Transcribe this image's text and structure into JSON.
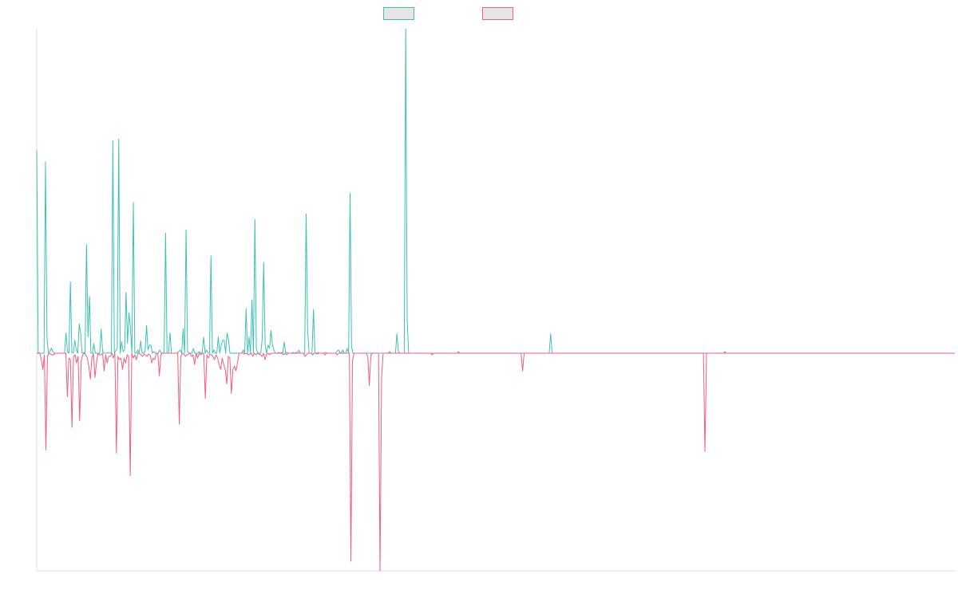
{
  "chart_data": {
    "type": "line",
    "title": "",
    "xlabel": "",
    "ylabel": "",
    "grid": false,
    "legend": "top-center",
    "colors": {
      "series_up": "#3cc1b4",
      "series_down": "#f25d80",
      "axis": "#dddddd"
    },
    "ylim": [
      -270,
      400
    ],
    "series": [
      {
        "values": [
          250,
          1,
          0,
          0,
          0,
          0,
          236,
          20,
          0,
          2,
          6,
          2,
          0,
          0,
          0,
          0,
          0,
          0,
          0,
          0,
          25,
          2,
          0,
          88,
          1,
          0,
          16,
          4,
          0,
          36,
          24,
          0,
          1,
          0,
          134,
          20,
          70,
          0,
          0,
          12,
          0,
          0,
          0,
          0,
          30,
          2,
          0,
          0,
          0,
          1,
          0,
          0,
          262,
          0,
          3,
          6,
          264,
          0,
          14,
          2,
          4,
          75,
          12,
          50,
          30,
          0,
          186,
          0,
          0,
          4,
          0,
          15,
          0,
          0,
          3,
          34,
          4,
          10,
          10,
          0,
          2,
          0,
          0,
          0,
          4,
          0,
          0,
          0,
          148,
          0,
          0,
          25,
          0,
          0,
          0,
          0,
          0,
          2,
          4,
          0,
          30,
          0,
          152,
          2,
          0,
          0,
          0,
          6,
          0,
          0,
          0,
          2,
          0,
          0,
          20,
          0,
          4,
          0,
          0,
          120,
          0,
          4,
          0,
          0,
          20,
          0,
          10,
          16,
          16,
          0,
          25,
          16,
          0,
          0,
          0,
          0,
          0,
          0,
          0,
          0,
          0,
          4,
          0,
          55,
          0,
          20,
          0,
          66,
          0,
          165,
          5,
          0,
          0,
          0,
          18,
          112,
          10,
          0,
          10,
          6,
          28,
          10,
          4,
          0,
          0,
          1,
          0,
          1,
          0,
          14,
          0,
          1,
          0,
          0,
          0,
          1,
          0,
          1,
          0,
          4,
          0,
          0,
          0,
          0,
          172,
          30,
          0,
          0,
          0,
          54,
          0,
          0,
          1,
          0,
          0,
          0,
          0,
          1,
          0,
          0,
          0,
          0,
          0,
          0,
          0,
          2,
          4,
          1,
          0,
          4,
          0,
          0,
          6,
          0,
          197,
          8,
          0,
          0,
          0,
          0,
          0,
          0,
          0,
          0,
          0,
          0,
          0,
          0,
          0,
          0,
          0,
          0,
          0,
          0,
          0,
          0,
          0,
          0,
          0,
          0,
          0,
          2,
          0,
          0,
          0,
          0,
          24,
          2,
          0,
          0,
          0,
          0,
          400,
          40,
          0,
          0,
          0,
          0,
          0,
          0,
          0,
          0,
          0,
          0,
          0,
          0,
          0,
          0,
          0,
          0,
          0,
          0,
          0,
          0,
          0,
          0,
          0,
          0,
          0,
          0,
          0,
          0,
          0,
          0,
          0,
          0,
          0,
          0,
          2,
          0,
          0,
          0,
          0,
          0,
          0,
          0,
          0,
          0,
          0,
          0,
          0,
          0,
          0,
          0,
          0,
          0,
          0,
          0,
          0,
          0,
          0,
          0,
          0,
          0,
          0,
          0,
          0,
          0,
          0,
          0,
          0,
          0,
          0,
          0,
          0,
          0,
          0,
          0,
          0,
          0,
          0,
          0,
          0,
          0,
          0,
          0,
          0,
          0,
          0,
          0,
          0,
          0,
          0,
          0,
          0,
          0,
          0,
          0,
          0,
          0,
          0,
          24,
          0,
          0,
          0,
          0,
          0,
          0,
          0,
          0,
          0,
          0,
          0,
          0,
          0,
          0,
          0,
          0,
          0,
          0,
          0,
          0,
          0,
          0,
          0,
          0,
          0,
          0,
          0,
          0,
          0,
          0,
          0,
          0,
          0,
          0,
          0,
          0,
          0,
          0,
          0,
          0,
          0,
          0,
          0,
          0,
          0,
          0,
          0,
          0,
          0,
          0,
          0,
          0,
          0,
          0,
          0,
          0,
          0,
          0,
          0,
          0,
          0,
          0,
          0,
          0,
          0,
          0,
          0,
          0,
          0,
          0,
          0,
          0,
          0,
          0,
          0,
          0,
          0,
          0,
          0,
          0,
          0,
          0,
          0,
          0,
          0,
          0,
          0,
          0,
          0,
          0,
          0,
          0,
          0,
          0,
          0,
          0,
          0,
          0,
          0,
          0,
          0,
          0,
          0,
          0,
          0,
          0,
          0,
          0,
          0,
          0,
          0,
          0,
          0,
          0,
          0,
          0,
          0,
          0,
          2,
          0,
          0,
          0,
          0,
          0,
          0,
          0,
          0,
          0,
          0,
          0,
          0,
          0,
          0,
          0,
          0,
          0,
          0,
          0,
          0,
          0,
          0,
          0,
          0,
          0,
          0,
          0,
          0,
          0,
          0,
          0,
          0,
          0,
          0,
          0,
          0,
          0,
          0,
          0,
          0,
          0,
          0,
          0,
          0,
          0,
          0,
          0,
          0,
          0,
          0,
          0,
          0,
          0,
          0,
          0,
          0,
          0,
          0,
          0,
          0,
          0,
          0,
          0,
          0,
          0,
          0,
          0,
          0,
          0,
          0,
          0,
          0,
          0,
          0,
          0,
          0,
          0,
          0,
          0,
          0,
          0,
          0,
          0,
          0,
          0,
          0,
          0,
          0,
          0,
          0,
          0,
          0,
          0,
          0,
          0,
          0,
          0,
          0,
          0,
          0,
          0,
          0,
          0,
          0,
          0,
          0,
          0,
          0,
          0,
          0,
          0,
          0,
          0,
          0,
          0,
          0,
          0,
          0,
          0,
          0,
          0,
          0,
          0,
          0,
          0,
          0,
          0,
          0,
          0,
          0,
          0,
          0,
          0,
          0,
          0,
          0,
          0,
          0,
          0,
          0,
          0,
          0,
          0,
          0,
          0,
          0,
          0,
          0,
          0,
          0,
          0,
          0,
          0,
          0,
          0,
          0,
          0
        ]
      },
      {
        "values": [
          0,
          0,
          0,
          -8,
          -20,
          -2,
          -120,
          -4,
          0,
          -1,
          -2,
          -2,
          0,
          0,
          0,
          0,
          0,
          0,
          0,
          0,
          -54,
          -6,
          -8,
          -92,
          -4,
          -2,
          -12,
          -4,
          -84,
          -10,
          -2,
          0,
          -2,
          -6,
          -16,
          -32,
          -6,
          0,
          -30,
          -12,
          0,
          -2,
          -2,
          0,
          -22,
          -2,
          -12,
          -4,
          -4,
          0,
          -6,
          0,
          -124,
          -4,
          -8,
          -6,
          -20,
          -6,
          -12,
          -2,
          -4,
          -152,
          0,
          -6,
          -2,
          -8,
          0,
          0,
          -2,
          -4,
          -1,
          -2,
          -4,
          -1,
          -2,
          -12,
          -6,
          -8,
          0,
          0,
          -28,
          -2,
          0,
          0,
          0,
          0,
          0,
          0,
          0,
          0,
          0,
          0,
          0,
          -88,
          -4,
          0,
          -1,
          -4,
          -2,
          -1,
          0,
          -4,
          -2,
          -14,
          0,
          -6,
          0,
          -2,
          0,
          0,
          -56,
          -2,
          -6,
          -1,
          -2,
          -4,
          -8,
          -2,
          -6,
          -14,
          -20,
          -6,
          -14,
          -20,
          -38,
          -4,
          -6,
          -50,
          -20,
          -16,
          -22,
          -12,
          0,
          0,
          0,
          0,
          -1,
          0,
          -2,
          -1,
          0,
          -4,
          0,
          -2,
          0,
          -1,
          -2,
          -4,
          0,
          -8,
          -1,
          0,
          -2,
          0,
          0,
          0,
          0,
          0,
          0,
          0,
          0,
          -2,
          0,
          -2,
          0,
          0,
          0,
          0,
          0,
          0,
          0,
          0,
          0,
          0,
          0,
          -4,
          -2,
          0,
          0,
          0,
          -2,
          0,
          0,
          -1,
          0,
          0,
          0,
          0,
          -2,
          0,
          0,
          0,
          0,
          0,
          0,
          0,
          -2,
          0,
          0,
          0,
          0,
          0,
          0,
          0,
          0,
          -258,
          -10,
          0,
          0,
          0,
          0,
          0,
          0,
          0,
          0,
          0,
          -4,
          -40,
          -2,
          0,
          0,
          0,
          0,
          0,
          -270,
          -30,
          0,
          0,
          0,
          0,
          0,
          0,
          0,
          0,
          0,
          0,
          0,
          0,
          0,
          0,
          0,
          0,
          0,
          0,
          0,
          0,
          0,
          0,
          0,
          0,
          0,
          0,
          0,
          0,
          0,
          0,
          0,
          0,
          -2,
          0,
          0,
          0,
          0,
          0,
          0,
          0,
          0,
          0,
          0,
          0,
          0,
          0,
          0,
          0,
          0,
          0,
          0,
          0,
          0,
          0,
          0,
          0,
          0,
          0,
          0,
          0,
          0,
          0,
          0,
          0,
          0,
          0,
          0,
          0,
          0,
          0,
          0,
          0,
          0,
          0,
          0,
          0,
          0,
          0,
          0,
          0,
          0,
          0,
          0,
          0,
          0,
          0,
          0,
          0,
          0,
          0,
          0,
          -22,
          0,
          0,
          0,
          0,
          0,
          0,
          0,
          0,
          0,
          0,
          0,
          0,
          0,
          0,
          0,
          0,
          0,
          0,
          0,
          0,
          0,
          0,
          0,
          0,
          0,
          0,
          0,
          0,
          0,
          0,
          0,
          0,
          0,
          0,
          0,
          0,
          0,
          0,
          0,
          0,
          0,
          0,
          0,
          0,
          0,
          0,
          0,
          0,
          0,
          0,
          0,
          0,
          0,
          0,
          0,
          0,
          0,
          0,
          0,
          0,
          0,
          0,
          0,
          0,
          0,
          0,
          0,
          0,
          0,
          0,
          0,
          0,
          0,
          0,
          0,
          0,
          0,
          0,
          0,
          0,
          0,
          0,
          0,
          0,
          0,
          0,
          0,
          0,
          0,
          0,
          0,
          0,
          0,
          0,
          0,
          0,
          0,
          0,
          0,
          0,
          0,
          0,
          0,
          0,
          0,
          0,
          0,
          0,
          0,
          0,
          0,
          0,
          0,
          0,
          0,
          0,
          0,
          0,
          -122,
          0,
          0,
          0,
          0,
          0,
          0,
          0,
          0,
          0,
          0,
          0,
          0,
          0,
          0,
          0,
          0,
          0,
          0,
          0,
          0,
          0,
          0,
          0,
          0,
          0,
          0,
          0,
          0,
          0,
          0,
          0,
          0,
          0,
          0,
          0,
          0,
          0,
          0,
          0,
          0,
          0,
          0,
          0,
          0,
          0,
          0,
          0,
          0,
          0,
          0,
          0,
          0,
          0,
          0,
          0,
          0,
          0,
          0,
          0,
          0,
          0,
          0,
          0,
          0,
          0,
          0,
          0,
          0,
          0,
          0,
          0,
          0,
          0,
          0,
          0,
          0,
          0,
          0,
          0,
          0,
          0,
          0,
          0,
          0,
          0,
          0,
          0,
          0,
          0,
          0,
          0,
          0,
          0,
          0,
          0,
          0,
          0,
          0,
          0,
          0,
          0,
          0,
          0,
          0,
          0,
          0,
          0,
          0,
          0,
          0,
          0,
          0,
          0,
          0,
          0,
          0,
          0,
          0,
          0,
          0,
          0,
          0,
          0,
          0,
          0,
          0,
          0,
          0,
          0,
          0,
          0,
          0,
          0,
          0,
          0,
          0,
          0,
          0,
          0,
          0,
          0,
          0,
          0,
          0,
          0,
          0,
          0,
          0,
          0,
          0,
          0,
          0,
          0,
          0,
          0,
          0,
          0,
          0,
          0,
          0,
          0,
          0,
          0
        ]
      }
    ]
  }
}
